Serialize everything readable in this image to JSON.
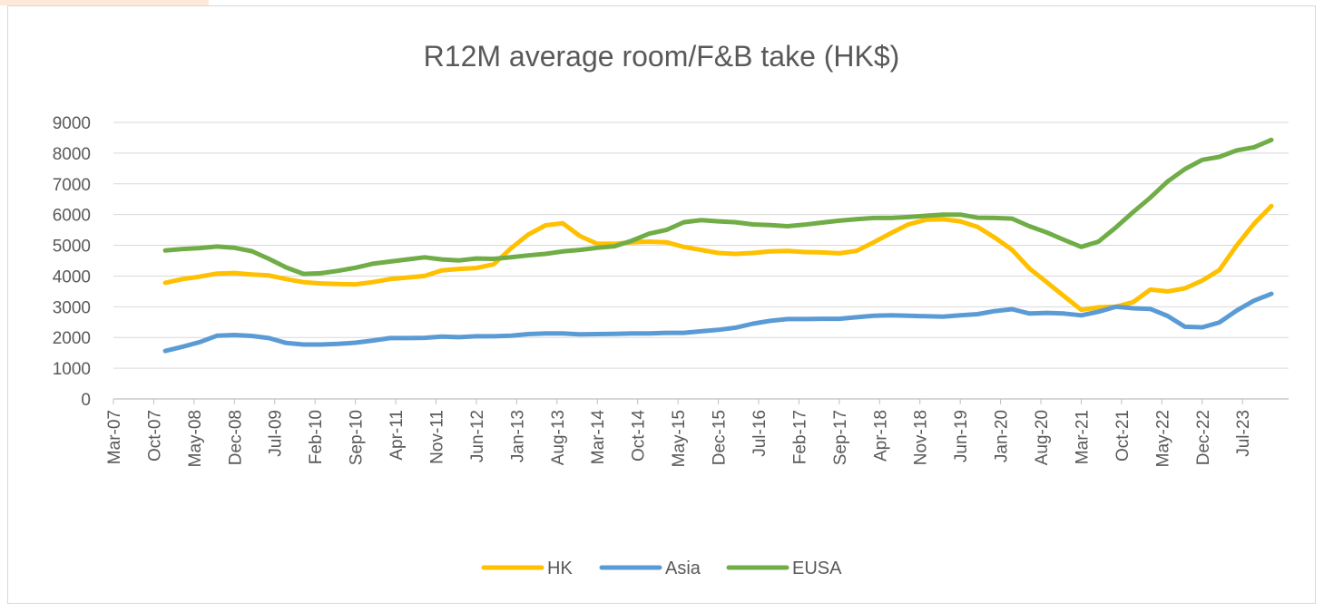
{
  "chart_data": {
    "type": "line",
    "title": "R12M average room/F&B take (HK$)",
    "xlabel": "",
    "ylabel": "",
    "ylim": [
      0,
      9000
    ],
    "y_ticks": [
      0,
      1000,
      2000,
      3000,
      4000,
      5000,
      6000,
      7000,
      8000,
      9000
    ],
    "x_tick_labels": [
      "Mar-07",
      "Oct-07",
      "May-08",
      "Dec-08",
      "Jul-09",
      "Feb-10",
      "Sep-10",
      "Apr-11",
      "Nov-11",
      "Jun-12",
      "Jan-13",
      "Aug-13",
      "Mar-14",
      "Oct-14",
      "May-15",
      "Dec-15",
      "Jul-16",
      "Feb-17",
      "Sep-17",
      "Apr-18",
      "Nov-18",
      "Jun-19",
      "Jan-20",
      "Aug-20",
      "Mar-21",
      "Oct-21",
      "May-22",
      "Dec-22",
      "Jul-23"
    ],
    "x_range": [
      "Mar-07",
      "Mar-24"
    ],
    "legend_position": "bottom",
    "grid": "horizontal",
    "x": [
      "Dec-07",
      "Mar-08",
      "Jun-08",
      "Sep-08",
      "Dec-08",
      "Mar-09",
      "Jun-09",
      "Sep-09",
      "Dec-09",
      "Mar-10",
      "Jun-10",
      "Sep-10",
      "Dec-10",
      "Mar-11",
      "Jun-11",
      "Sep-11",
      "Dec-11",
      "Mar-12",
      "Jun-12",
      "Sep-12",
      "Dec-12",
      "Mar-13",
      "Jun-13",
      "Sep-13",
      "Dec-13",
      "Mar-14",
      "Jun-14",
      "Sep-14",
      "Dec-14",
      "Mar-15",
      "Jun-15",
      "Sep-15",
      "Dec-15",
      "Mar-16",
      "Jun-16",
      "Sep-16",
      "Dec-16",
      "Mar-17",
      "Jun-17",
      "Sep-17",
      "Dec-17",
      "Mar-18",
      "Jun-18",
      "Sep-18",
      "Dec-18",
      "Mar-19",
      "Jun-19",
      "Sep-19",
      "Dec-19",
      "Mar-20",
      "Jun-20",
      "Sep-20",
      "Dec-20",
      "Mar-21",
      "Jun-21",
      "Sep-21",
      "Dec-21",
      "Mar-22",
      "Jun-22",
      "Sep-22",
      "Dec-22",
      "Mar-23",
      "Jun-23",
      "Sep-23",
      "Dec-23"
    ],
    "series": [
      {
        "name": "HK",
        "color": "#ffc000",
        "values": [
          3780,
          3900,
          3980,
          4080,
          4100,
          4050,
          4020,
          3900,
          3800,
          3760,
          3740,
          3730,
          3800,
          3900,
          3950,
          4000,
          4180,
          4230,
          4260,
          4380,
          4900,
          5350,
          5650,
          5720,
          5300,
          5050,
          5050,
          5100,
          5120,
          5100,
          4950,
          4850,
          4750,
          4720,
          4750,
          4800,
          4820,
          4780,
          4770,
          4740,
          4820,
          5100,
          5400,
          5680,
          5830,
          5850,
          5780,
          5600,
          5250,
          4850,
          4250,
          3800,
          3350,
          2900,
          2980,
          3000,
          3150,
          3560,
          3500,
          3600,
          3850,
          4200,
          5000,
          5700,
          6280
        ]
      },
      {
        "name": "Asia",
        "color": "#5b9bd5",
        "values": [
          1560,
          1700,
          1850,
          2060,
          2080,
          2050,
          1980,
          1820,
          1770,
          1770,
          1790,
          1830,
          1900,
          1980,
          1980,
          1990,
          2030,
          2010,
          2040,
          2040,
          2060,
          2110,
          2130,
          2130,
          2100,
          2110,
          2120,
          2130,
          2130,
          2150,
          2150,
          2200,
          2250,
          2320,
          2450,
          2540,
          2600,
          2600,
          2610,
          2610,
          2660,
          2710,
          2720,
          2710,
          2690,
          2680,
          2720,
          2760,
          2860,
          2920,
          2780,
          2800,
          2780,
          2720,
          2840,
          3000,
          2950,
          2930,
          2700,
          2350,
          2330,
          2490,
          2880,
          3200,
          3420
        ]
      },
      {
        "name": "EUSA",
        "color": "#70ad47",
        "values": [
          4830,
          4880,
          4910,
          4960,
          4920,
          4810,
          4560,
          4280,
          4070,
          4090,
          4170,
          4270,
          4400,
          4470,
          4540,
          4610,
          4540,
          4510,
          4570,
          4560,
          4610,
          4670,
          4720,
          4800,
          4850,
          4920,
          4970,
          5150,
          5380,
          5500,
          5750,
          5820,
          5780,
          5750,
          5680,
          5660,
          5620,
          5670,
          5740,
          5800,
          5850,
          5890,
          5890,
          5920,
          5960,
          6000,
          6000,
          5900,
          5890,
          5870,
          5620,
          5420,
          5180,
          4950,
          5120,
          5580,
          6080,
          6550,
          7080,
          7480,
          7780,
          7880,
          8090,
          8190,
          8430
        ]
      }
    ]
  }
}
